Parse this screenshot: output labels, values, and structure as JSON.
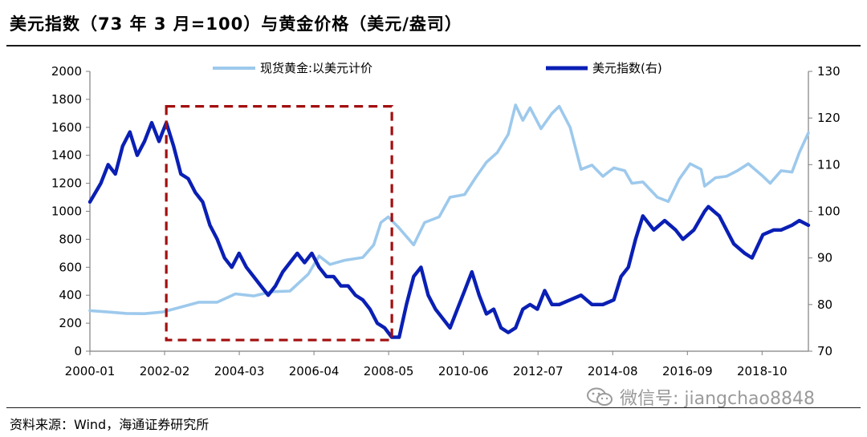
{
  "title": "美元指数（73 年 3 月=100）与黄金价格（美元/盎司）",
  "source": "资料来源：Wind，海通证券研究所",
  "watermark": {
    "text": "微信号: jiangchao8848",
    "icon": "wechat-icon"
  },
  "colors": {
    "gold": "#9dc9ec",
    "usd": "#0a1fb4",
    "box": "#a30f0f",
    "axis": "#808080"
  },
  "chart_data": {
    "type": "line",
    "title": "美元指数（73 年 3 月=100）与黄金价格（美元/盎司）",
    "x_ticks": [
      "2000-01",
      "2002-02",
      "2004-03",
      "2006-04",
      "2008-05",
      "2010-06",
      "2012-07",
      "2014-08",
      "2016-09",
      "2018-10"
    ],
    "x_range": [
      2000.0,
      2019.75
    ],
    "y_left": {
      "label": "",
      "range": [
        0,
        2000
      ],
      "ticks": [
        0,
        200,
        400,
        600,
        800,
        1000,
        1200,
        1400,
        1600,
        1800,
        2000
      ]
    },
    "y_right": {
      "label": "",
      "range": [
        70,
        130
      ],
      "ticks": [
        70,
        80,
        90,
        100,
        110,
        120,
        130
      ]
    },
    "legend_position": "top",
    "highlight_box": {
      "x_range": [
        2002.1,
        2008.3
      ],
      "y_range_left": [
        80,
        1750
      ],
      "style": "dashed"
    },
    "series": [
      {
        "name": "现货黄金:以美元计价",
        "axis": "left",
        "color": "#9dc9ec",
        "points": [
          [
            2000.0,
            290
          ],
          [
            2000.5,
            280
          ],
          [
            2001.0,
            270
          ],
          [
            2001.5,
            268
          ],
          [
            2002.0,
            280
          ],
          [
            2002.5,
            315
          ],
          [
            2003.0,
            350
          ],
          [
            2003.5,
            350
          ],
          [
            2004.0,
            410
          ],
          [
            2004.5,
            395
          ],
          [
            2005.0,
            425
          ],
          [
            2005.5,
            430
          ],
          [
            2006.0,
            550
          ],
          [
            2006.3,
            680
          ],
          [
            2006.6,
            620
          ],
          [
            2007.0,
            650
          ],
          [
            2007.5,
            670
          ],
          [
            2007.8,
            760
          ],
          [
            2008.0,
            920
          ],
          [
            2008.2,
            960
          ],
          [
            2008.5,
            880
          ],
          [
            2008.9,
            760
          ],
          [
            2009.2,
            920
          ],
          [
            2009.6,
            960
          ],
          [
            2009.9,
            1100
          ],
          [
            2010.3,
            1120
          ],
          [
            2010.6,
            1240
          ],
          [
            2010.9,
            1350
          ],
          [
            2011.2,
            1420
          ],
          [
            2011.5,
            1550
          ],
          [
            2011.7,
            1760
          ],
          [
            2011.9,
            1650
          ],
          [
            2012.1,
            1740
          ],
          [
            2012.4,
            1590
          ],
          [
            2012.7,
            1700
          ],
          [
            2012.9,
            1750
          ],
          [
            2013.2,
            1600
          ],
          [
            2013.5,
            1300
          ],
          [
            2013.8,
            1330
          ],
          [
            2014.1,
            1250
          ],
          [
            2014.4,
            1310
          ],
          [
            2014.7,
            1290
          ],
          [
            2014.9,
            1200
          ],
          [
            2015.2,
            1210
          ],
          [
            2015.6,
            1100
          ],
          [
            2015.9,
            1070
          ],
          [
            2016.2,
            1230
          ],
          [
            2016.5,
            1340
          ],
          [
            2016.8,
            1300
          ],
          [
            2016.9,
            1180
          ],
          [
            2017.2,
            1240
          ],
          [
            2017.5,
            1250
          ],
          [
            2017.8,
            1290
          ],
          [
            2018.1,
            1340
          ],
          [
            2018.5,
            1250
          ],
          [
            2018.7,
            1200
          ],
          [
            2019.0,
            1290
          ],
          [
            2019.3,
            1280
          ],
          [
            2019.5,
            1420
          ],
          [
            2019.75,
            1560
          ]
        ]
      },
      {
        "name": "美元指数(右)",
        "axis": "right",
        "color": "#0a1fb4",
        "points": [
          [
            2000.0,
            102
          ],
          [
            2000.3,
            106
          ],
          [
            2000.5,
            110
          ],
          [
            2000.7,
            108
          ],
          [
            2000.9,
            114
          ],
          [
            2001.1,
            117
          ],
          [
            2001.3,
            112
          ],
          [
            2001.5,
            115
          ],
          [
            2001.7,
            119
          ],
          [
            2001.9,
            115
          ],
          [
            2002.0,
            117
          ],
          [
            2002.1,
            119
          ],
          [
            2002.3,
            114
          ],
          [
            2002.5,
            108
          ],
          [
            2002.7,
            107
          ],
          [
            2002.9,
            104
          ],
          [
            2003.1,
            102
          ],
          [
            2003.3,
            97
          ],
          [
            2003.5,
            94
          ],
          [
            2003.7,
            90
          ],
          [
            2003.9,
            88
          ],
          [
            2004.1,
            91
          ],
          [
            2004.3,
            88
          ],
          [
            2004.5,
            86
          ],
          [
            2004.7,
            84
          ],
          [
            2004.9,
            82
          ],
          [
            2005.1,
            84
          ],
          [
            2005.3,
            87
          ],
          [
            2005.5,
            89
          ],
          [
            2005.7,
            91
          ],
          [
            2005.9,
            89
          ],
          [
            2006.1,
            91
          ],
          [
            2006.3,
            88
          ],
          [
            2006.5,
            86
          ],
          [
            2006.7,
            86
          ],
          [
            2006.9,
            84
          ],
          [
            2007.1,
            84
          ],
          [
            2007.3,
            82
          ],
          [
            2007.5,
            81
          ],
          [
            2007.7,
            79
          ],
          [
            2007.9,
            76
          ],
          [
            2008.1,
            75
          ],
          [
            2008.3,
            73
          ],
          [
            2008.5,
            73
          ],
          [
            2008.7,
            80
          ],
          [
            2008.9,
            86
          ],
          [
            2009.1,
            88
          ],
          [
            2009.3,
            82
          ],
          [
            2009.5,
            79
          ],
          [
            2009.7,
            77
          ],
          [
            2009.9,
            75
          ],
          [
            2010.1,
            79
          ],
          [
            2010.3,
            83
          ],
          [
            2010.5,
            87
          ],
          [
            2010.7,
            82
          ],
          [
            2010.9,
            78
          ],
          [
            2011.1,
            79
          ],
          [
            2011.3,
            75
          ],
          [
            2011.5,
            74
          ],
          [
            2011.7,
            75
          ],
          [
            2011.9,
            79
          ],
          [
            2012.1,
            80
          ],
          [
            2012.3,
            79
          ],
          [
            2012.5,
            83
          ],
          [
            2012.7,
            80
          ],
          [
            2012.9,
            80
          ],
          [
            2013.2,
            81
          ],
          [
            2013.5,
            82
          ],
          [
            2013.8,
            80
          ],
          [
            2014.1,
            80
          ],
          [
            2014.4,
            81
          ],
          [
            2014.6,
            86
          ],
          [
            2014.8,
            88
          ],
          [
            2015.0,
            94
          ],
          [
            2015.2,
            99
          ],
          [
            2015.5,
            96
          ],
          [
            2015.8,
            98
          ],
          [
            2016.1,
            96
          ],
          [
            2016.3,
            94
          ],
          [
            2016.6,
            96
          ],
          [
            2016.9,
            100
          ],
          [
            2017.0,
            101
          ],
          [
            2017.3,
            99
          ],
          [
            2017.5,
            96
          ],
          [
            2017.7,
            93
          ],
          [
            2018.0,
            91
          ],
          [
            2018.2,
            90
          ],
          [
            2018.5,
            95
          ],
          [
            2018.8,
            96
          ],
          [
            2019.0,
            96
          ],
          [
            2019.3,
            97
          ],
          [
            2019.5,
            98
          ],
          [
            2019.75,
            97
          ]
        ]
      }
    ]
  }
}
